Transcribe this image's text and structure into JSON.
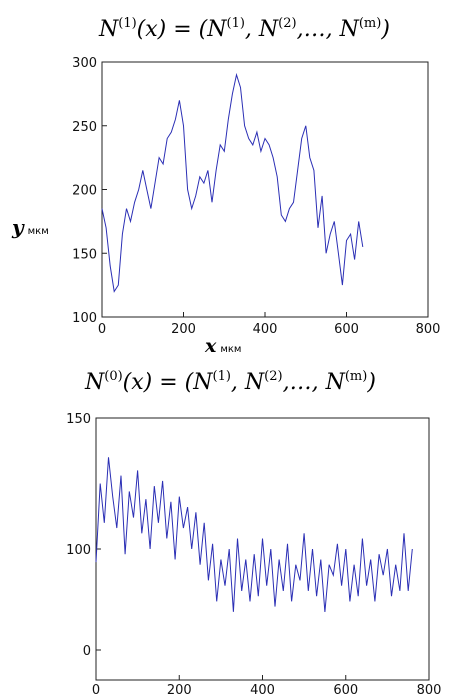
{
  "chart_data": [
    {
      "type": "line",
      "title_parts": {
        "lhs_symbol": "N",
        "lhs_sup": "(1)",
        "arg": "(x) = (",
        "t1": "N",
        "t1_sup": "(1)",
        "sep1": ", ",
        "t2": "N",
        "t2_sup": "(2)",
        "sep2": ",…, ",
        "t3": "N",
        "t3_sup": "(m)",
        "close": ")"
      },
      "xlabel": "x",
      "xlabel_unit": "мкм",
      "ylabel": "y",
      "ylabel_unit": "мкм",
      "xlim": [
        0,
        800
      ],
      "ylim": [
        100,
        300
      ],
      "xticks": [
        "0",
        "200",
        "400",
        "600",
        "800"
      ],
      "yticks": [
        "100",
        "150",
        "200",
        "250",
        "300"
      ],
      "series_color": "#2b2fb5",
      "x": [
        0,
        10,
        20,
        30,
        40,
        50,
        60,
        70,
        80,
        90,
        100,
        110,
        120,
        130,
        140,
        150,
        160,
        170,
        180,
        190,
        200,
        210,
        220,
        230,
        240,
        250,
        260,
        270,
        280,
        290,
        300,
        310,
        320,
        330,
        340,
        350,
        360,
        370,
        380,
        390,
        400,
        410,
        420,
        430,
        440,
        450,
        460,
        470,
        480,
        490,
        500,
        510,
        520,
        530,
        540,
        550,
        560,
        570,
        580,
        590,
        600,
        610,
        620,
        630,
        640
      ],
      "y": [
        185,
        170,
        140,
        120,
        125,
        165,
        185,
        175,
        190,
        200,
        215,
        200,
        185,
        205,
        225,
        220,
        240,
        245,
        255,
        270,
        250,
        200,
        185,
        195,
        210,
        205,
        215,
        190,
        215,
        235,
        230,
        255,
        275,
        290,
        280,
        250,
        240,
        235,
        245,
        230,
        240,
        235,
        225,
        210,
        180,
        175,
        185,
        190,
        215,
        240,
        250,
        225,
        215,
        170,
        195,
        150,
        165,
        175,
        150,
        125,
        160,
        165,
        145,
        175,
        155
      ]
    },
    {
      "type": "line",
      "title_parts": {
        "lhs_symbol": "N",
        "lhs_sup": "(0)",
        "arg": "(x) = (",
        "t1": "N",
        "t1_sup": "(1)",
        "sep1": ", ",
        "t2": "N",
        "t2_sup": "(2)",
        "sep2": ",…, ",
        "t3": "N",
        "t3_sup": "(m)",
        "close": ")"
      },
      "xlim": [
        0,
        800
      ],
      "ylim": [
        50,
        150
      ],
      "xticks": [
        "0",
        "200",
        "400",
        "600",
        "800"
      ],
      "yticks": [
        "0",
        "100",
        "150"
      ],
      "series_color": "#2b2fb5",
      "x": [
        0,
        10,
        20,
        30,
        40,
        50,
        60,
        70,
        80,
        90,
        100,
        110,
        120,
        130,
        140,
        150,
        160,
        170,
        180,
        190,
        200,
        210,
        220,
        230,
        240,
        250,
        260,
        270,
        280,
        290,
        300,
        310,
        320,
        330,
        340,
        350,
        360,
        370,
        380,
        390,
        400,
        410,
        420,
        430,
        440,
        450,
        460,
        470,
        480,
        490,
        500,
        510,
        520,
        530,
        540,
        550,
        560,
        570,
        580,
        590,
        600,
        610,
        620,
        630,
        640,
        650,
        660,
        670,
        680,
        690,
        700,
        710,
        720,
        730,
        740,
        750,
        760
      ],
      "y": [
        95,
        125,
        110,
        135,
        120,
        108,
        128,
        98,
        122,
        112,
        130,
        106,
        119,
        100,
        124,
        110,
        126,
        104,
        118,
        96,
        120,
        108,
        116,
        100,
        114,
        94,
        110,
        88,
        102,
        80,
        96,
        86,
        100,
        76,
        104,
        84,
        96,
        80,
        98,
        82,
        104,
        86,
        100,
        78,
        96,
        84,
        102,
        80,
        94,
        88,
        106,
        84,
        100,
        82,
        96,
        76,
        94,
        90,
        102,
        86,
        100,
        80,
        94,
        82,
        104,
        86,
        96,
        80,
        98,
        90,
        100,
        82,
        94,
        84,
        106,
        84,
        100
      ]
    }
  ]
}
